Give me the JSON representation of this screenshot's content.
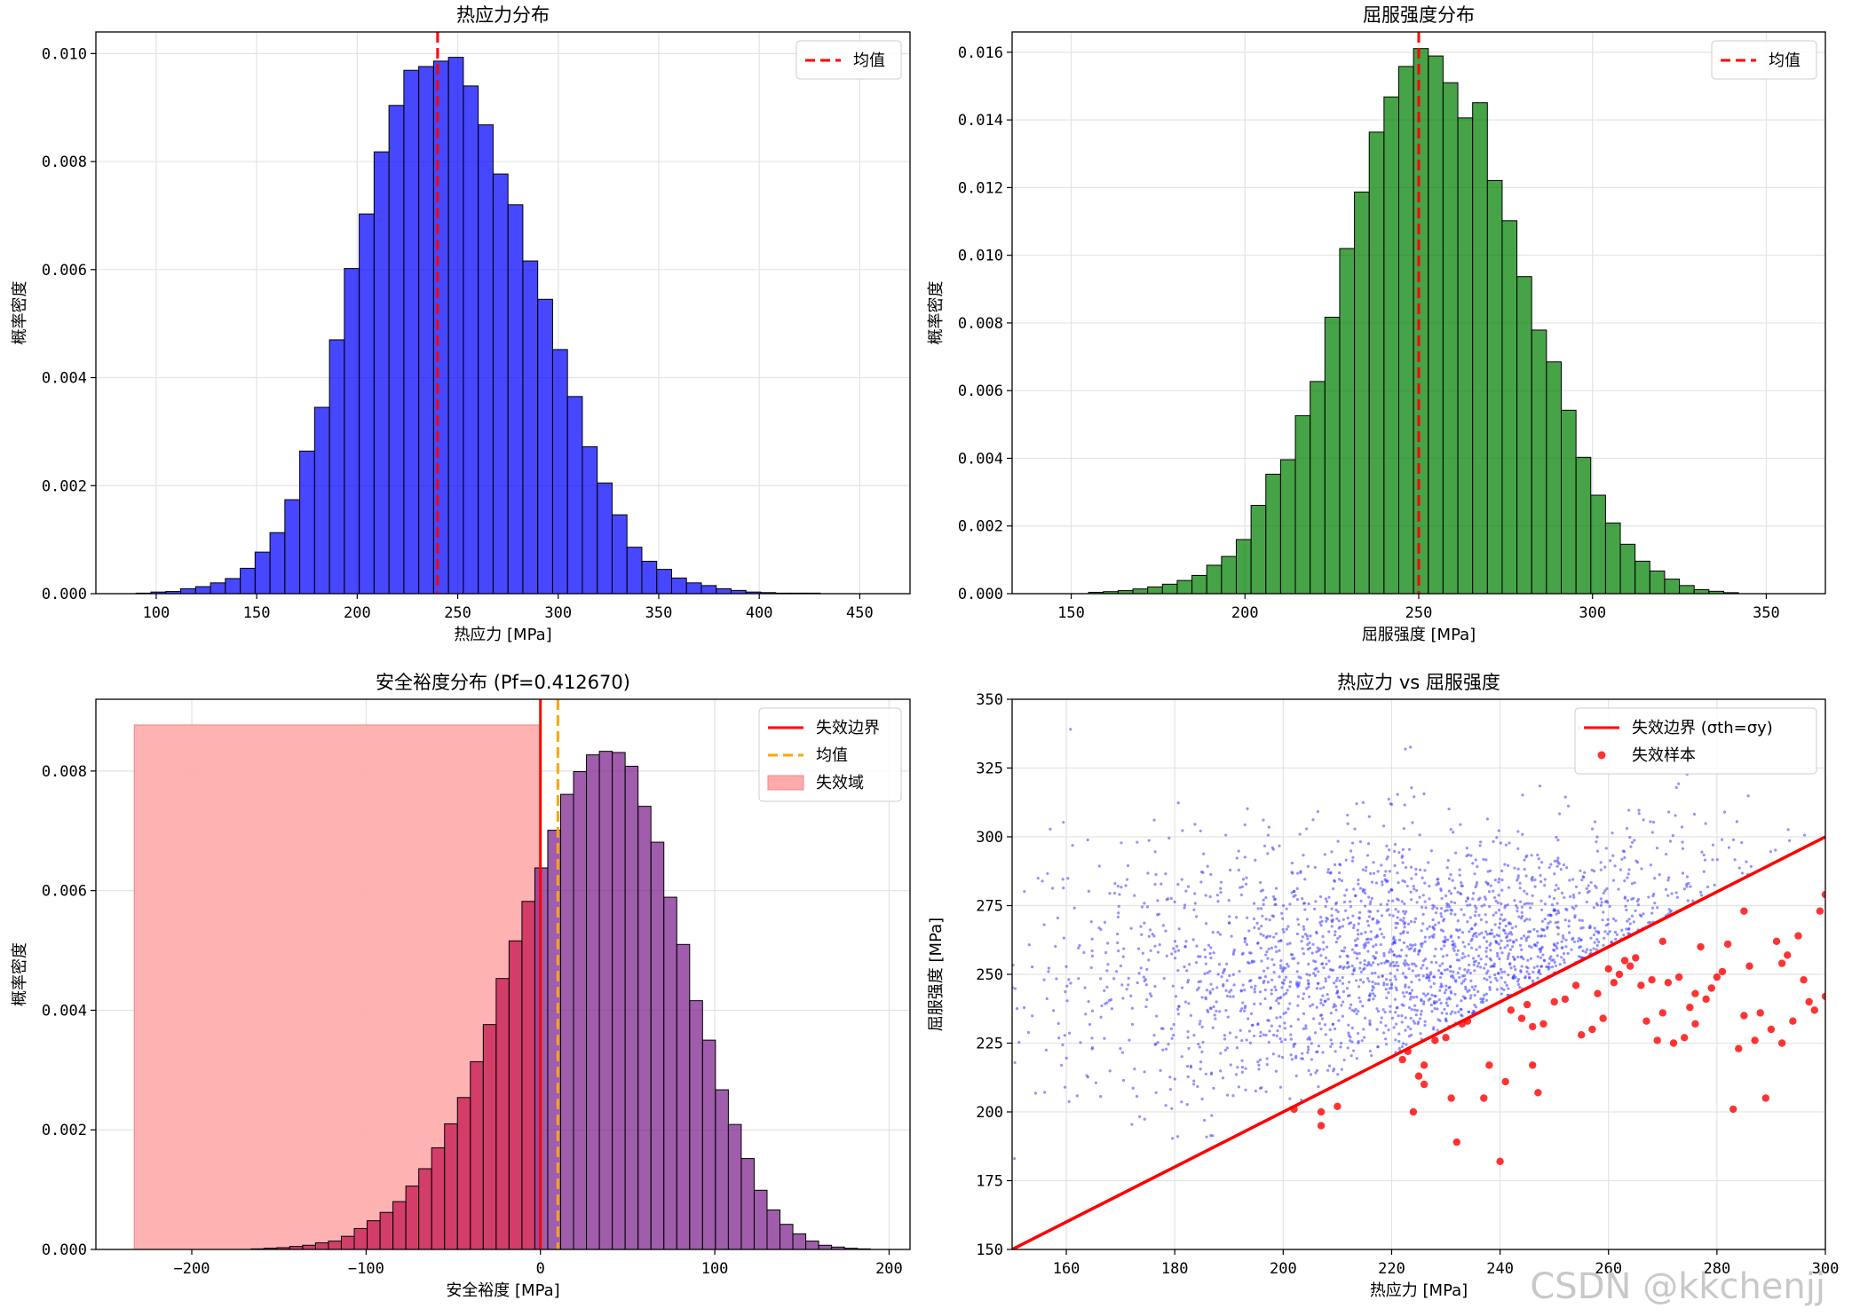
{
  "watermark": "CSDN @kkchenjj",
  "colors": {
    "hist1": "#0000ff",
    "hist2": "#008000",
    "margin_fail": "#c0104a",
    "margin_safe": "#7a1f8a",
    "red": "#ff0000",
    "orange": "#ffa500",
    "fail_region": "#ffaaaa",
    "scatter": "#3a3aff"
  },
  "chart_data": [
    {
      "type": "bar",
      "title": "热应力分布",
      "xlabel": "热应力 [MPa]",
      "ylabel": "概率密度",
      "xlim": [
        70,
        475
      ],
      "ylim": [
        0,
        0.0104
      ],
      "xticks": [
        100,
        150,
        200,
        250,
        300,
        350,
        400,
        450
      ],
      "yticks": [
        0.0,
        0.002,
        0.004,
        0.006,
        0.008,
        0.01
      ],
      "ytick_labels": [
        "0.000",
        "0.002",
        "0.004",
        "0.006",
        "0.008",
        "0.010"
      ],
      "grid": true,
      "legend_position": "top-right",
      "legend": [
        {
          "label": "均值",
          "style": "red-dashed"
        }
      ],
      "mean": 240,
      "bin_start": 90,
      "bin_width": 7.4,
      "values": [
        1e-05,
        3e-05,
        4e-05,
        9e-05,
        0.00013,
        0.0002,
        0.00028,
        0.00047,
        0.00077,
        0.00113,
        0.00174,
        0.00264,
        0.00345,
        0.0047,
        0.00602,
        0.00703,
        0.00818,
        0.00904,
        0.00969,
        0.00976,
        0.00986,
        0.00993,
        0.0094,
        0.00868,
        0.00777,
        0.0072,
        0.00616,
        0.00545,
        0.00452,
        0.00365,
        0.00272,
        0.00205,
        0.00146,
        0.00086,
        0.0006,
        0.00045,
        0.00029,
        0.0002,
        0.00015,
        9e-05,
        6e-05,
        3e-05,
        2e-05,
        1e-05,
        1e-05,
        1e-05
      ]
    },
    {
      "type": "bar",
      "title": "屈服强度分布",
      "xlabel": "屈服强度 [MPa]",
      "ylabel": "概率密度",
      "xlim": [
        133,
        367
      ],
      "ylim": [
        0,
        0.0166
      ],
      "xticks": [
        150,
        200,
        250,
        300,
        350
      ],
      "yticks": [
        0.0,
        0.002,
        0.004,
        0.006,
        0.008,
        0.01,
        0.012,
        0.014,
        0.016
      ],
      "ytick_labels": [
        "0.000",
        "0.002",
        "0.004",
        "0.006",
        "0.008",
        "0.010",
        "0.012",
        "0.014",
        "0.016"
      ],
      "grid": true,
      "legend_position": "top-right",
      "legend": [
        {
          "label": "均值",
          "style": "red-dashed"
        }
      ],
      "mean": 250,
      "bin_start": 155,
      "bin_width": 4.25,
      "values": [
        4e-05,
        6e-05,
        9e-05,
        0.00014,
        0.0002,
        0.00028,
        0.00039,
        0.00054,
        0.00084,
        0.0011,
        0.0016,
        0.00261,
        0.00353,
        0.00396,
        0.00526,
        0.00627,
        0.00817,
        0.0102,
        0.01187,
        0.01364,
        0.01468,
        0.01558,
        0.01611,
        0.01589,
        0.0151,
        0.01406,
        0.01451,
        0.01221,
        0.01102,
        0.00937,
        0.00779,
        0.00685,
        0.00542,
        0.00403,
        0.00291,
        0.00209,
        0.00146,
        0.00096,
        0.00067,
        0.00043,
        0.00024,
        0.00012,
        7e-05,
        3e-05
      ]
    },
    {
      "type": "bar",
      "title": "安全裕度分布 (Pf=0.412670)",
      "xlabel": "安全裕度 [MPa]",
      "ylabel": "概率密度",
      "xlim": [
        -255,
        212
      ],
      "ylim": [
        0,
        0.0092
      ],
      "xticks": [
        -200,
        -100,
        0,
        100,
        200
      ],
      "yticks": [
        0.0,
        0.002,
        0.004,
        0.006,
        0.008
      ],
      "ytick_labels": [
        "0.000",
        "0.002",
        "0.004",
        "0.006",
        "0.008"
      ],
      "grid": true,
      "legend_position": "top-right",
      "legend": [
        {
          "label": "失效边界",
          "style": "red-solid"
        },
        {
          "label": "均值",
          "style": "orange-dashed"
        },
        {
          "label": "失效域",
          "style": "red-fill"
        }
      ],
      "mean": 10,
      "failure_boundary": 0,
      "failure_region": {
        "x0": -233,
        "x1": 0,
        "height": 0.00877
      },
      "bin_start": -166,
      "bin_width": 7.4,
      "values": [
        1e-05,
        2e-05,
        3e-05,
        5e-05,
        7e-05,
        0.00011,
        0.00014,
        0.00022,
        0.00035,
        0.00048,
        0.00062,
        0.0008,
        0.00106,
        0.00135,
        0.0017,
        0.0021,
        0.00254,
        0.00314,
        0.00376,
        0.00453,
        0.00516,
        0.00582,
        0.00638,
        0.00701,
        0.00761,
        0.00799,
        0.00827,
        0.00833,
        0.00831,
        0.00808,
        0.00741,
        0.00681,
        0.00589,
        0.0051,
        0.00416,
        0.0035,
        0.00267,
        0.00209,
        0.00152,
        0.00099,
        0.00066,
        0.00042,
        0.00026,
        0.00014,
        7e-05,
        4e-05,
        2e-05,
        1e-05
      ]
    },
    {
      "type": "scatter",
      "title": "热应力 vs 屈服强度",
      "xlabel": "热应力 [MPa]",
      "ylabel": "屈服强度 [MPa]",
      "xlim": [
        150,
        300
      ],
      "ylim": [
        150,
        350
      ],
      "xticks": [
        160,
        180,
        200,
        220,
        240,
        260,
        280,
        300
      ],
      "yticks": [
        150,
        175,
        200,
        225,
        250,
        275,
        300,
        325,
        350
      ],
      "grid": true,
      "legend_position": "top-right",
      "legend": [
        {
          "label": "失效边界 (σth=σy)",
          "style": "red-solid"
        },
        {
          "label": "失效样本",
          "style": "red-dot"
        }
      ],
      "boundary_line": [
        [
          150,
          150
        ],
        [
          300,
          300
        ]
      ],
      "sample_point_count": 4000,
      "sample_stress_mean": 240,
      "sample_stress_std": 40,
      "sample_strength_mean": 250,
      "sample_strength_std": 25,
      "failure_points": [
        [
          202,
          201
        ],
        [
          207,
          200
        ],
        [
          207,
          195
        ],
        [
          210,
          202
        ],
        [
          222,
          219
        ],
        [
          223,
          222
        ],
        [
          224,
          200
        ],
        [
          225,
          213
        ],
        [
          226,
          210
        ],
        [
          226,
          217
        ],
        [
          228,
          226
        ],
        [
          230,
          227
        ],
        [
          231,
          205
        ],
        [
          232,
          189
        ],
        [
          233,
          232
        ],
        [
          234,
          233
        ],
        [
          237,
          205
        ],
        [
          238,
          217
        ],
        [
          240,
          182
        ],
        [
          241,
          211
        ],
        [
          242,
          237
        ],
        [
          244,
          234
        ],
        [
          245,
          239
        ],
        [
          246,
          217
        ],
        [
          246,
          231
        ],
        [
          247,
          207
        ],
        [
          248,
          232
        ],
        [
          250,
          240
        ],
        [
          252,
          241
        ],
        [
          255,
          228
        ],
        [
          257,
          230
        ],
        [
          259,
          234
        ],
        [
          261,
          247
        ],
        [
          262,
          250
        ],
        [
          263,
          255
        ],
        [
          264,
          253
        ],
        [
          266,
          246
        ],
        [
          267,
          233
        ],
        [
          268,
          248
        ],
        [
          269,
          226
        ],
        [
          270,
          236
        ],
        [
          271,
          247
        ],
        [
          272,
          225
        ],
        [
          273,
          249
        ],
        [
          274,
          227
        ],
        [
          275,
          238
        ],
        [
          276,
          243
        ],
        [
          277,
          260
        ],
        [
          278,
          241
        ],
        [
          279,
          245
        ],
        [
          280,
          249
        ],
        [
          281,
          251
        ],
        [
          282,
          261
        ],
        [
          283,
          201
        ],
        [
          284,
          223
        ],
        [
          285,
          235
        ],
        [
          286,
          253
        ],
        [
          287,
          226
        ],
        [
          288,
          236
        ],
        [
          289,
          205
        ],
        [
          290,
          230
        ],
        [
          291,
          262
        ],
        [
          292,
          254
        ],
        [
          293,
          257
        ],
        [
          294,
          233
        ],
        [
          295,
          264
        ],
        [
          296,
          248
        ],
        [
          297,
          240
        ],
        [
          298,
          237
        ],
        [
          299,
          273
        ],
        [
          300,
          279
        ],
        [
          300,
          242
        ],
        [
          285,
          273
        ],
        [
          270,
          262
        ],
        [
          265,
          256
        ],
        [
          260,
          252
        ],
        [
          258,
          243
        ],
        [
          254,
          246
        ],
        [
          276,
          232
        ],
        [
          292,
          225
        ]
      ]
    }
  ]
}
